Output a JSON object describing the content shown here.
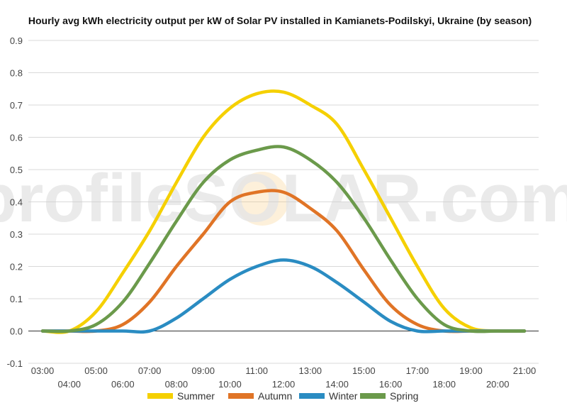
{
  "chart_data": {
    "type": "line",
    "title": "Hourly avg kWh electricity output per kW of Solar PV installed in Kamianets-Podilskyi, Ukraine (by season)",
    "xlabel": "",
    "ylabel": "",
    "ylim": [
      -0.1,
      0.9
    ],
    "yticks": [
      "-0.1",
      "0.0",
      "0.1",
      "0.2",
      "0.3",
      "0.4",
      "0.5",
      "0.6",
      "0.7",
      "0.8",
      "0.9"
    ],
    "x": [
      "03:00",
      "04:00",
      "05:00",
      "06:00",
      "07:00",
      "08:00",
      "09:00",
      "10:00",
      "11:00",
      "12:00",
      "13:00",
      "14:00",
      "15:00",
      "16:00",
      "17:00",
      "18:00",
      "19:00",
      "20:00",
      "21:00"
    ],
    "grid": true,
    "legend_position": "bottom",
    "series": [
      {
        "name": "Summer",
        "color": "#f5d000",
        "values": [
          0.0,
          0.0,
          0.06,
          0.18,
          0.31,
          0.46,
          0.6,
          0.69,
          0.735,
          0.74,
          0.7,
          0.64,
          0.5,
          0.35,
          0.2,
          0.07,
          0.01,
          0.0,
          0.0
        ]
      },
      {
        "name": "Autumn",
        "color": "#e07426",
        "values": [
          0.0,
          0.0,
          0.0,
          0.02,
          0.09,
          0.2,
          0.3,
          0.4,
          0.43,
          0.43,
          0.38,
          0.31,
          0.19,
          0.08,
          0.02,
          0.0,
          0.0,
          0.0,
          0.0
        ]
      },
      {
        "name": "Winter",
        "color": "#2a8cc2",
        "values": [
          0.0,
          0.0,
          0.0,
          0.0,
          0.0,
          0.04,
          0.1,
          0.16,
          0.2,
          0.22,
          0.2,
          0.15,
          0.09,
          0.03,
          0.0,
          0.0,
          0.0,
          0.0,
          0.0
        ]
      },
      {
        "name": "Spring",
        "color": "#6b9a4b",
        "values": [
          0.0,
          0.0,
          0.02,
          0.09,
          0.21,
          0.34,
          0.46,
          0.53,
          0.56,
          0.57,
          0.53,
          0.46,
          0.35,
          0.22,
          0.1,
          0.02,
          0.0,
          0.0,
          0.0
        ]
      }
    ]
  },
  "watermark": {
    "text": "profileSOLAR.com"
  },
  "colors": {
    "grid": "#d9d9d9",
    "zero_line": "#333333",
    "axis_text": "#444444",
    "sun": "#f7c46a"
  }
}
